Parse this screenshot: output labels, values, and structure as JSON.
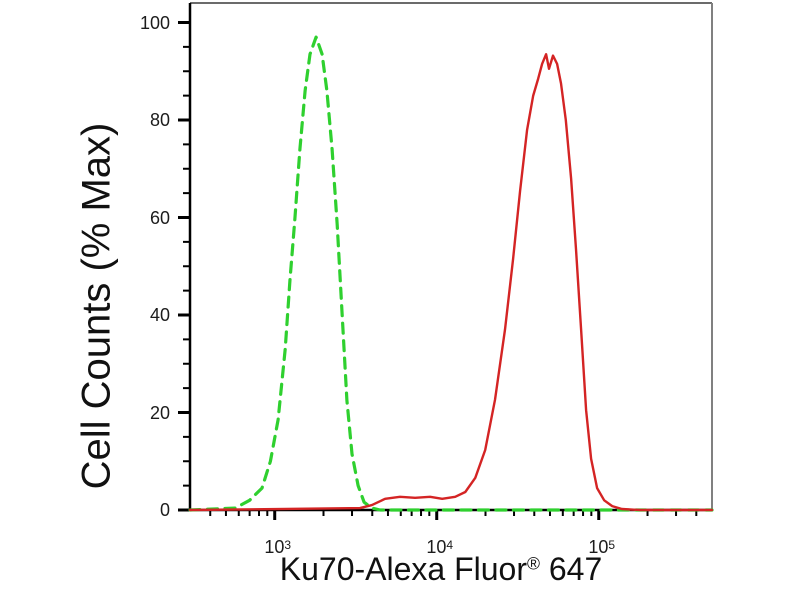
{
  "figure": {
    "background": "#ffffff"
  },
  "chart_data": {
    "type": "line",
    "title": "",
    "xlabel": "Ku70-Alexa Fluor® 647",
    "xlabel_parts": {
      "text": "Ku70-Alexa Fluor",
      "sup": "®",
      "after": " 647"
    },
    "ylabel": "Cell Counts (% Max)",
    "x_scale": "log",
    "xlim": [
      300,
      500000
    ],
    "ylim": [
      0,
      104
    ],
    "grid": false,
    "legend": "none",
    "x_ticks": [
      {
        "value": 1000,
        "base": "10",
        "exp": "3"
      },
      {
        "value": 10000,
        "base": "10",
        "exp": "4"
      },
      {
        "value": 100000,
        "base": "10",
        "exp": "5"
      }
    ],
    "x_minor_tick_decades": [
      2,
      3,
      4,
      5
    ],
    "y_ticks": [
      0,
      20,
      40,
      60,
      80,
      100
    ],
    "y_minor_step": 5,
    "series": [
      {
        "name": "green-dashed-curve",
        "color": "#2fd02f",
        "style": "dashed",
        "points": [
          [
            300,
            0
          ],
          [
            570,
            0.4
          ],
          [
            700,
            2
          ],
          [
            835,
            4.5
          ],
          [
            940,
            10
          ],
          [
            1050,
            18.5
          ],
          [
            1160,
            33
          ],
          [
            1240,
            47
          ],
          [
            1330,
            59.5
          ],
          [
            1430,
            74
          ],
          [
            1540,
            86
          ],
          [
            1650,
            93.5
          ],
          [
            1800,
            97
          ],
          [
            1960,
            93.5
          ],
          [
            2100,
            86
          ],
          [
            2260,
            74
          ],
          [
            2430,
            58.5
          ],
          [
            2600,
            41
          ],
          [
            2790,
            22.5
          ],
          [
            3000,
            11.5
          ],
          [
            3270,
            5
          ],
          [
            3560,
            1.6
          ],
          [
            3980,
            0.4
          ],
          [
            4470,
            0
          ],
          [
            500000,
            0
          ]
        ]
      },
      {
        "name": "red-solid-curve",
        "color": "#d42424",
        "style": "solid",
        "points": [
          [
            300,
            0
          ],
          [
            3360,
            0.4
          ],
          [
            3980,
            1
          ],
          [
            4800,
            2.3
          ],
          [
            5930,
            2.7
          ],
          [
            7350,
            2.5
          ],
          [
            9100,
            2.7
          ],
          [
            10800,
            2.3
          ],
          [
            13000,
            2.7
          ],
          [
            15000,
            3.7
          ],
          [
            17300,
            6.6
          ],
          [
            19900,
            12.3
          ],
          [
            22900,
            22.6
          ],
          [
            26400,
            37
          ],
          [
            29600,
            51.5
          ],
          [
            32700,
            65.5
          ],
          [
            36100,
            78
          ],
          [
            39400,
            85
          ],
          [
            42300,
            88.5
          ],
          [
            44700,
            91.5
          ],
          [
            47300,
            93.5
          ],
          [
            49300,
            90.5
          ],
          [
            52200,
            93.2
          ],
          [
            55300,
            91.5
          ],
          [
            58500,
            87.5
          ],
          [
            62600,
            80
          ],
          [
            67500,
            68
          ],
          [
            72400,
            53.5
          ],
          [
            77800,
            37
          ],
          [
            83500,
            20.5
          ],
          [
            89700,
            10.5
          ],
          [
            97700,
            4.5
          ],
          [
            108000,
            2
          ],
          [
            121000,
            0.8
          ],
          [
            139000,
            0.2
          ],
          [
            180000,
            0
          ],
          [
            500000,
            0
          ]
        ]
      }
    ]
  }
}
